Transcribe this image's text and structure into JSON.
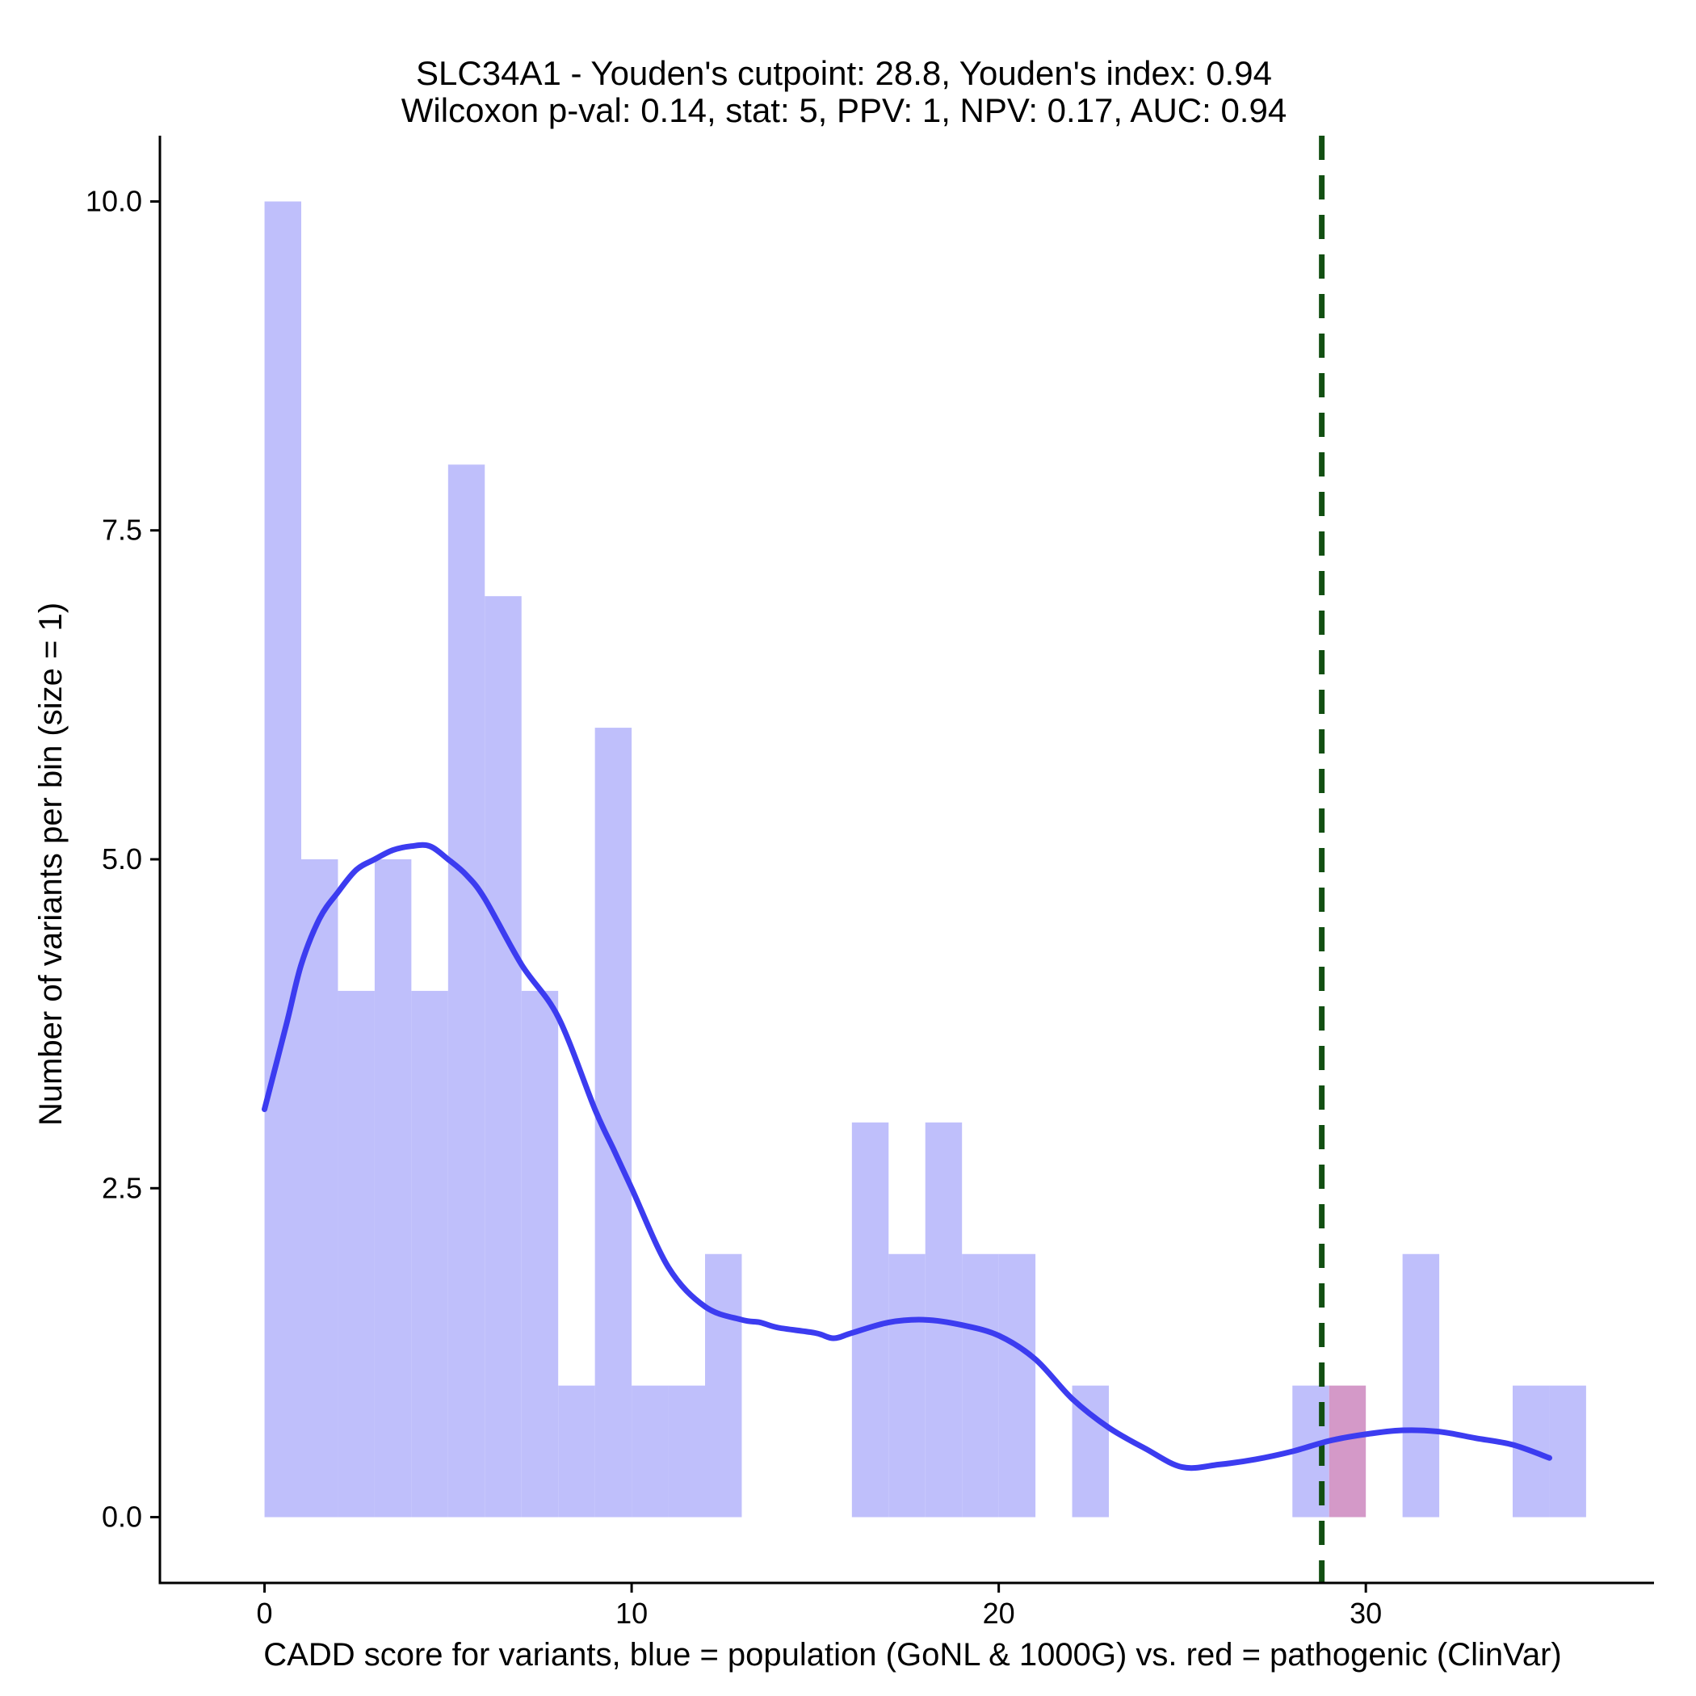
{
  "chart_data": {
    "type": "bar",
    "title_lines": [
      "SLC34A1 - Youden's cutpoint: 28.8, Youden's index: 0.94",
      "Wilcoxon p-val: 0.14, stat: 5, PPV: 1, NPV: 0.17, AUC: 0.94"
    ],
    "xlabel": "CADD score for variants, blue = population (GoNL & 1000G) vs. red = pathogenic (ClinVar)",
    "ylabel": "Number of variants per bin (size = 1)",
    "xlim": [
      -2.85,
      37.85
    ],
    "ylim": [
      -0.5,
      10.5
    ],
    "x_ticks": [
      0,
      10,
      20,
      30
    ],
    "x_tick_labels": [
      "0",
      "10",
      "20",
      "30"
    ],
    "y_ticks": [
      0,
      2.5,
      5,
      7.5,
      10
    ],
    "y_tick_labels": [
      "0.0",
      "2.5",
      "5.0",
      "7.5",
      "10.0"
    ],
    "bin_width": 1,
    "grid": false,
    "colors": {
      "population": "#bfbffb",
      "pathogenic": "#d499c8",
      "density_line": "#3c3cf0",
      "cutpoint_line": "#124f12"
    },
    "series": [
      {
        "name": "population (GoNL & 1000G)",
        "bins": [
          {
            "x0": 0,
            "count": 10
          },
          {
            "x0": 1,
            "count": 5
          },
          {
            "x0": 2,
            "count": 4
          },
          {
            "x0": 3,
            "count": 5
          },
          {
            "x0": 4,
            "count": 4
          },
          {
            "x0": 5,
            "count": 8
          },
          {
            "x0": 6,
            "count": 7
          },
          {
            "x0": 7,
            "count": 4
          },
          {
            "x0": 8,
            "count": 1
          },
          {
            "x0": 9,
            "count": 6
          },
          {
            "x0": 10,
            "count": 1
          },
          {
            "x0": 11,
            "count": 1
          },
          {
            "x0": 12,
            "count": 2
          },
          {
            "x0": 16,
            "count": 3
          },
          {
            "x0": 17,
            "count": 2
          },
          {
            "x0": 18,
            "count": 3
          },
          {
            "x0": 19,
            "count": 2
          },
          {
            "x0": 20,
            "count": 2
          },
          {
            "x0": 22,
            "count": 1
          },
          {
            "x0": 28,
            "count": 1
          },
          {
            "x0": 31,
            "count": 2
          },
          {
            "x0": 34,
            "count": 1
          },
          {
            "x0": 35,
            "count": 1
          }
        ]
      },
      {
        "name": "pathogenic (ClinVar)",
        "bins": [
          {
            "x0": 29,
            "count": 1
          }
        ]
      }
    ],
    "density_curve": {
      "x": [
        0,
        0.6,
        1,
        1.5,
        2,
        2.5,
        3,
        3.5,
        4,
        4.5,
        5,
        5.5,
        6,
        7,
        8,
        9,
        9.5,
        10,
        11,
        12,
        13,
        13.5,
        14,
        15,
        15.5,
        16,
        17,
        18,
        19,
        20,
        21,
        22,
        23,
        24,
        25,
        26,
        27,
        28,
        29,
        30,
        31,
        32,
        33,
        34,
        35
      ],
      "y": [
        3.1,
        3.75,
        4.2,
        4.55,
        4.75,
        4.92,
        5.0,
        5.07,
        5.1,
        5.1,
        5.0,
        4.88,
        4.7,
        4.2,
        3.8,
        3.1,
        2.8,
        2.5,
        1.9,
        1.6,
        1.5,
        1.48,
        1.44,
        1.4,
        1.36,
        1.4,
        1.48,
        1.5,
        1.46,
        1.38,
        1.2,
        0.9,
        0.68,
        0.52,
        0.38,
        0.4,
        0.44,
        0.5,
        0.58,
        0.63,
        0.66,
        0.65,
        0.6,
        0.55,
        0.45
      ]
    },
    "cutpoint": 28.8
  }
}
